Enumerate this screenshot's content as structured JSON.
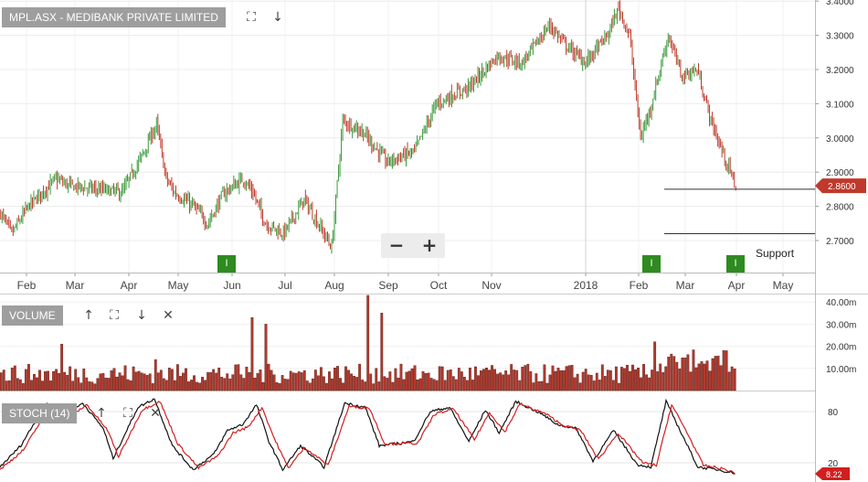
{
  "chart_data": [
    {
      "type": "candlestick",
      "title": "MPL.ASX - MEDIBANK PRIVATE LIMITED",
      "x_labels": [
        "Feb",
        "Mar",
        "Apr",
        "May",
        "Jun",
        "Jul",
        "Aug",
        "Sep",
        "Oct",
        "Nov",
        "2018",
        "Feb",
        "Mar",
        "Apr",
        "May"
      ],
      "y_ticks": [
        "2.7000",
        "2.8000",
        "2.9000",
        "3.0000",
        "3.1000",
        "3.2000",
        "3.3000",
        "3.4000"
      ],
      "ylim": [
        2.61,
        3.41
      ],
      "last_price": "2.8600",
      "annotation": "Support",
      "support_lines": [
        2.85,
        2.72
      ],
      "marker_label": "I",
      "up_color": "#3a9a3a",
      "down_color": "#c0392b",
      "close_anchors": [
        [
          0,
          2.78
        ],
        [
          8,
          2.72
        ],
        [
          20,
          2.8
        ],
        [
          40,
          2.88
        ],
        [
          50,
          2.86
        ],
        [
          70,
          2.85
        ],
        [
          88,
          2.84
        ],
        [
          104,
          2.96
        ],
        [
          113,
          3.04
        ],
        [
          120,
          2.88
        ],
        [
          126,
          2.84
        ],
        [
          140,
          2.8
        ],
        [
          150,
          2.75
        ],
        [
          162,
          2.84
        ],
        [
          176,
          2.88
        ],
        [
          183,
          2.84
        ],
        [
          192,
          2.75
        ],
        [
          205,
          2.72
        ],
        [
          220,
          2.82
        ],
        [
          240,
          2.68
        ],
        [
          248,
          3.05
        ],
        [
          262,
          3.02
        ],
        [
          280,
          2.93
        ],
        [
          300,
          2.96
        ],
        [
          316,
          3.1
        ],
        [
          340,
          3.15
        ],
        [
          360,
          3.24
        ],
        [
          378,
          3.22
        ],
        [
          398,
          3.33
        ],
        [
          410,
          3.27
        ],
        [
          424,
          3.22
        ],
        [
          440,
          3.3
        ],
        [
          448,
          3.38
        ],
        [
          456,
          3.3
        ],
        [
          464,
          3.0
        ],
        [
          472,
          3.1
        ],
        [
          484,
          3.3
        ],
        [
          494,
          3.18
        ],
        [
          505,
          3.2
        ],
        [
          515,
          3.05
        ],
        [
          527,
          2.92
        ],
        [
          533,
          2.86
        ]
      ]
    },
    {
      "type": "bar",
      "title": "VOLUME",
      "y_ticks": [
        "10.00m",
        "20.00m",
        "30.00m",
        "40.00m"
      ],
      "ylim": [
        0,
        42
      ],
      "color": "#b03a2e",
      "spikes": [
        [
          44,
          21
        ],
        [
          112,
          14
        ],
        [
          183,
          33
        ],
        [
          192,
          30
        ],
        [
          267,
          43
        ],
        [
          276,
          35
        ],
        [
          475,
          22
        ],
        [
          527,
          18
        ]
      ]
    },
    {
      "type": "line",
      "title": "STOCH (14)",
      "y_ticks": [
        "20",
        "80"
      ],
      "ylim": [
        0,
        100
      ],
      "last_value": "8.22",
      "series": [
        {
          "color": "#111111",
          "anchors": [
            [
              0,
              15
            ],
            [
              15,
              40
            ],
            [
              28,
              75
            ],
            [
              34,
              88
            ],
            [
              44,
              72
            ],
            [
              60,
              90
            ],
            [
              75,
              60
            ],
            [
              82,
              25
            ],
            [
              100,
              85
            ],
            [
              112,
              95
            ],
            [
              125,
              40
            ],
            [
              140,
              12
            ],
            [
              155,
              30
            ],
            [
              165,
              58
            ],
            [
              176,
              65
            ],
            [
              186,
              88
            ],
            [
              195,
              45
            ],
            [
              205,
              12
            ],
            [
              218,
              40
            ],
            [
              235,
              15
            ],
            [
              250,
              90
            ],
            [
              265,
              85
            ],
            [
              275,
              40
            ],
            [
              300,
              45
            ],
            [
              312,
              80
            ],
            [
              326,
              85
            ],
            [
              340,
              45
            ],
            [
              352,
              82
            ],
            [
              362,
              55
            ],
            [
              374,
              92
            ],
            [
              392,
              78
            ],
            [
              404,
              65
            ],
            [
              418,
              60
            ],
            [
              430,
              22
            ],
            [
              445,
              58
            ],
            [
              462,
              18
            ],
            [
              472,
              15
            ],
            [
              483,
              92
            ],
            [
              494,
              55
            ],
            [
              506,
              15
            ],
            [
              520,
              12
            ],
            [
              533,
              8
            ]
          ]
        },
        {
          "color": "#d11f1f",
          "anchors": [
            [
              0,
              12
            ],
            [
              17,
              35
            ],
            [
              30,
              70
            ],
            [
              37,
              85
            ],
            [
              47,
              70
            ],
            [
              63,
              88
            ],
            [
              78,
              58
            ],
            [
              86,
              27
            ],
            [
              103,
              82
            ],
            [
              116,
              92
            ],
            [
              129,
              42
            ],
            [
              144,
              14
            ],
            [
              158,
              28
            ],
            [
              169,
              55
            ],
            [
              180,
              62
            ],
            [
              190,
              85
            ],
            [
              199,
              48
            ],
            [
              209,
              14
            ],
            [
              221,
              38
            ],
            [
              238,
              17
            ],
            [
              253,
              86
            ],
            [
              268,
              84
            ],
            [
              279,
              42
            ],
            [
              303,
              43
            ],
            [
              315,
              77
            ],
            [
              329,
              83
            ],
            [
              344,
              47
            ],
            [
              355,
              79
            ],
            [
              366,
              56
            ],
            [
              377,
              89
            ],
            [
              396,
              77
            ],
            [
              408,
              64
            ],
            [
              421,
              58
            ],
            [
              434,
              24
            ],
            [
              448,
              55
            ],
            [
              466,
              20
            ],
            [
              476,
              17
            ],
            [
              487,
              88
            ],
            [
              498,
              56
            ],
            [
              510,
              17
            ],
            [
              524,
              13
            ],
            [
              533,
              8
            ]
          ]
        }
      ]
    }
  ],
  "toolbar": {
    "expand_icon": "expand-icon",
    "download_icon": "download-icon",
    "up_icon": "arrow-up-icon",
    "close_icon": "close-icon"
  },
  "zoom": {
    "minus": "−",
    "plus": "+"
  }
}
